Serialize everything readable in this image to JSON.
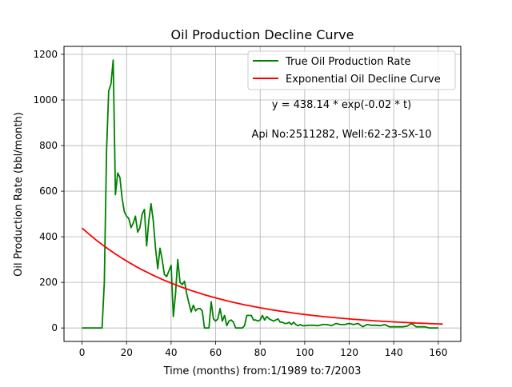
{
  "chart_data": {
    "type": "line",
    "title": "Oil Production Decline Curve",
    "xlabel": "Time (months) from:1/1989 to:7/2003",
    "ylabel": "Oil Production Rate (bbl/month)",
    "xlim": [
      -8.1,
      170.1
    ],
    "ylim": [
      -59,
      1235
    ],
    "xticks": [
      0,
      20,
      40,
      60,
      80,
      100,
      120,
      140,
      160
    ],
    "yticks": [
      0,
      200,
      400,
      600,
      800,
      1000,
      1200
    ],
    "grid": true,
    "legend_position": "top-right",
    "annotations": [
      "y = 438.14 * exp(-0.02 * t)",
      "Api No:2511282, Well:62-23-SX-10"
    ],
    "series": [
      {
        "name": "True Oil Production Rate",
        "color": "#008000",
        "style": "line",
        "points": [
          [
            0,
            0
          ],
          [
            1,
            0
          ],
          [
            2,
            0
          ],
          [
            3,
            0
          ],
          [
            4,
            0
          ],
          [
            5,
            0
          ],
          [
            6,
            0
          ],
          [
            7,
            0
          ],
          [
            8,
            0
          ],
          [
            9,
            0
          ],
          [
            10,
            200
          ],
          [
            11,
            780
          ],
          [
            12,
            1040
          ],
          [
            13,
            1070
          ],
          [
            14,
            1175
          ],
          [
            15,
            585
          ],
          [
            16,
            680
          ],
          [
            17,
            660
          ],
          [
            18,
            570
          ],
          [
            19,
            510
          ],
          [
            20,
            490
          ],
          [
            21,
            480
          ],
          [
            22,
            440
          ],
          [
            23,
            460
          ],
          [
            24,
            490
          ],
          [
            25,
            420
          ],
          [
            26,
            440
          ],
          [
            27,
            500
          ],
          [
            28,
            520
          ],
          [
            29,
            360
          ],
          [
            30,
            470
          ],
          [
            31,
            545
          ],
          [
            32,
            470
          ],
          [
            33,
            350
          ],
          [
            34,
            260
          ],
          [
            35,
            350
          ],
          [
            36,
            300
          ],
          [
            37,
            235
          ],
          [
            38,
            225
          ],
          [
            39,
            250
          ],
          [
            40,
            275
          ],
          [
            41,
            50
          ],
          [
            42,
            150
          ],
          [
            43,
            300
          ],
          [
            44,
            200
          ],
          [
            45,
            190
          ],
          [
            46,
            205
          ],
          [
            47,
            150
          ],
          [
            48,
            110
          ],
          [
            49,
            70
          ],
          [
            50,
            100
          ],
          [
            51,
            75
          ],
          [
            52,
            85
          ],
          [
            53,
            85
          ],
          [
            54,
            75
          ],
          [
            55,
            0
          ],
          [
            56,
            0
          ],
          [
            57,
            0
          ],
          [
            58,
            115
          ],
          [
            59,
            40
          ],
          [
            60,
            30
          ],
          [
            61,
            40
          ],
          [
            62,
            85
          ],
          [
            63,
            30
          ],
          [
            64,
            55
          ],
          [
            65,
            10
          ],
          [
            66,
            30
          ],
          [
            67,
            35
          ],
          [
            68,
            25
          ],
          [
            69,
            0
          ],
          [
            70,
            0
          ],
          [
            71,
            0
          ],
          [
            72,
            0
          ],
          [
            73,
            10
          ],
          [
            74,
            55
          ],
          [
            75,
            55
          ],
          [
            76,
            55
          ],
          [
            77,
            35
          ],
          [
            78,
            35
          ],
          [
            79,
            30
          ],
          [
            80,
            35
          ],
          [
            81,
            55
          ],
          [
            82,
            35
          ],
          [
            83,
            50
          ],
          [
            84,
            40
          ],
          [
            85,
            35
          ],
          [
            86,
            30
          ],
          [
            87,
            35
          ],
          [
            88,
            40
          ],
          [
            89,
            25
          ],
          [
            90,
            25
          ],
          [
            91,
            20
          ],
          [
            92,
            20
          ],
          [
            93,
            25
          ],
          [
            94,
            15
          ],
          [
            95,
            25
          ],
          [
            96,
            15
          ],
          [
            97,
            10
          ],
          [
            98,
            15
          ],
          [
            99,
            10
          ],
          [
            100,
            10
          ],
          [
            102,
            12
          ],
          [
            104,
            12
          ],
          [
            106,
            10
          ],
          [
            108,
            15
          ],
          [
            110,
            15
          ],
          [
            112,
            10
          ],
          [
            114,
            20
          ],
          [
            116,
            15
          ],
          [
            118,
            15
          ],
          [
            120,
            20
          ],
          [
            122,
            15
          ],
          [
            124,
            20
          ],
          [
            126,
            5
          ],
          [
            128,
            15
          ],
          [
            130,
            12
          ],
          [
            132,
            12
          ],
          [
            134,
            10
          ],
          [
            136,
            15
          ],
          [
            138,
            5
          ],
          [
            140,
            5
          ],
          [
            142,
            5
          ],
          [
            144,
            5
          ],
          [
            146,
            8
          ],
          [
            148,
            20
          ],
          [
            150,
            5
          ],
          [
            152,
            5
          ],
          [
            154,
            5
          ],
          [
            156,
            0
          ],
          [
            158,
            0
          ],
          [
            160,
            0
          ]
        ]
      },
      {
        "name": "Exponential Oil Decline Curve",
        "color": "#ff0000",
        "style": "exp",
        "a": 438.14,
        "b": -0.02,
        "x_range": [
          0,
          162
        ]
      }
    ]
  }
}
